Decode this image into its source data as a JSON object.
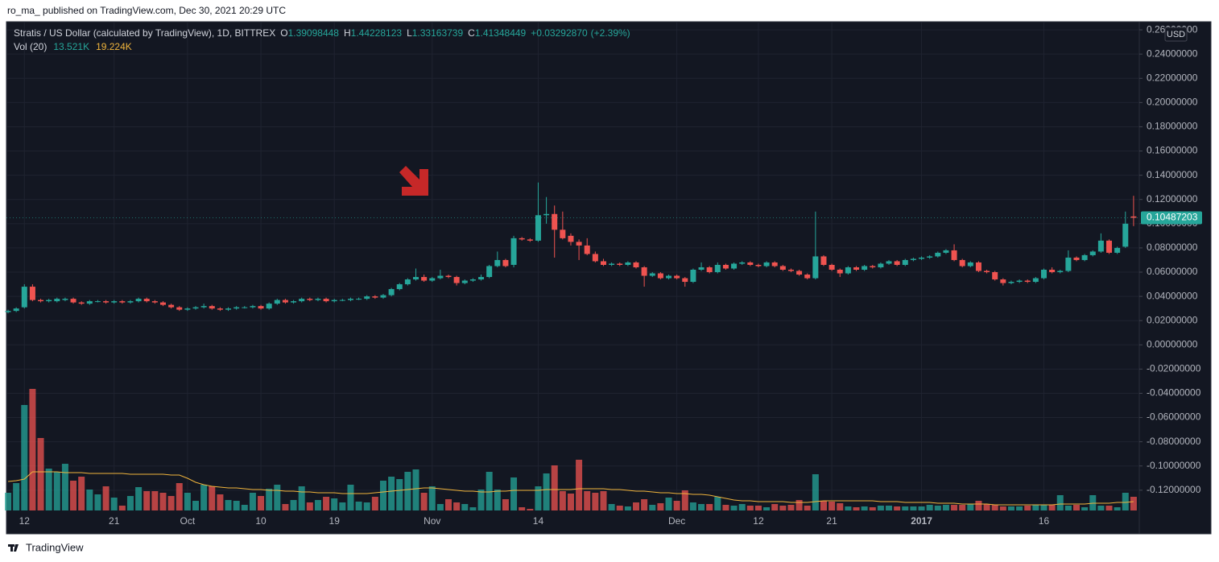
{
  "header": "ro_ma_ published on TradingView.com, Dec 30, 2021 20:29 UTC",
  "footer": "TradingView",
  "chart_data": {
    "type": "candlestick",
    "title": "Stratis / US Dollar (calculated by TradingView), 1D, BITTREX",
    "ohlc_legend": [
      {
        "key": "O",
        "value": 1.39098448
      },
      {
        "key": "H",
        "value": 1.44228123
      },
      {
        "key": "L",
        "value": 1.33163739
      },
      {
        "key": "C",
        "value": 1.41348449
      }
    ],
    "change": "+0.03292870",
    "change_pct": "(+2.39%)",
    "volume_legend": {
      "name": "Vol (20)",
      "value": "13.521K",
      "ma": "19.224K"
    },
    "currency": "USD",
    "up_color": "#26a69a",
    "down_color": "#ef5350",
    "ma_color": "#f0b43c",
    "xlim": [
      -0.2,
      138.7
    ],
    "ylim": [
      -0.156,
      0.2667
    ],
    "grid": true,
    "xticks": [
      {
        "value": 2,
        "label": "12"
      },
      {
        "value": 13,
        "label": "21"
      },
      {
        "value": 22,
        "label": "Oct"
      },
      {
        "value": 31,
        "label": "10"
      },
      {
        "value": 40,
        "label": "19"
      },
      {
        "value": 52,
        "label": "Nov"
      },
      {
        "value": 65,
        "label": "14"
      },
      {
        "value": 82,
        "label": "Dec"
      },
      {
        "value": 92,
        "label": "12"
      },
      {
        "value": 101,
        "label": "21"
      },
      {
        "value": 112,
        "label": "2017"
      },
      {
        "value": 127,
        "label": "16"
      }
    ],
    "yticks": [
      {
        "value": 0.26,
        "label": "0.26000000"
      },
      {
        "value": 0.24,
        "label": "0.24000000"
      },
      {
        "value": 0.22,
        "label": "0.22000000"
      },
      {
        "value": 0.2,
        "label": "0.20000000"
      },
      {
        "value": 0.18,
        "label": "0.18000000"
      },
      {
        "value": 0.16,
        "label": "0.16000000"
      },
      {
        "value": 0.14,
        "label": "0.14000000"
      },
      {
        "value": 0.12,
        "label": "0.12000000"
      },
      {
        "value": 0.1,
        "label": "0.10000000"
      },
      {
        "value": 0.08,
        "label": "0.08000000"
      },
      {
        "value": 0.06,
        "label": "0.06000000"
      },
      {
        "value": 0.04,
        "label": "0.04000000"
      },
      {
        "value": 0.02,
        "label": "0.02000000"
      },
      {
        "value": 0,
        "label": "0.00000000"
      },
      {
        "value": -0.02,
        "label": "-0.02000000"
      },
      {
        "value": -0.04,
        "label": "-0.04000000"
      },
      {
        "value": -0.06,
        "label": "-0.06000000"
      },
      {
        "value": -0.08,
        "label": "-0.08000000"
      },
      {
        "value": -0.1,
        "label": "-0.10000000"
      },
      {
        "value": -0.12,
        "label": "-0.12000000"
      }
    ],
    "ohlc": [
      [
        0.027,
        0.029,
        0.026,
        0.028
      ],
      [
        0.028,
        0.031,
        0.027,
        0.03
      ],
      [
        0.031,
        0.05,
        0.03,
        0.048
      ],
      [
        0.048,
        0.05,
        0.036,
        0.037
      ],
      [
        0.037,
        0.038,
        0.035,
        0.036
      ],
      [
        0.036,
        0.038,
        0.035,
        0.037
      ],
      [
        0.036,
        0.039,
        0.035,
        0.038
      ],
      [
        0.037,
        0.039,
        0.036,
        0.038
      ],
      [
        0.038,
        0.039,
        0.034,
        0.035
      ],
      [
        0.035,
        0.036,
        0.033,
        0.034
      ],
      [
        0.034,
        0.037,
        0.033,
        0.036
      ],
      [
        0.036,
        0.037,
        0.035,
        0.036
      ],
      [
        0.036,
        0.037,
        0.034,
        0.035
      ],
      [
        0.035,
        0.037,
        0.034,
        0.036
      ],
      [
        0.036,
        0.037,
        0.034,
        0.035
      ],
      [
        0.035,
        0.037,
        0.034,
        0.036
      ],
      [
        0.036,
        0.039,
        0.035,
        0.038
      ],
      [
        0.038,
        0.039,
        0.035,
        0.036
      ],
      [
        0.036,
        0.037,
        0.034,
        0.035
      ],
      [
        0.035,
        0.036,
        0.032,
        0.033
      ],
      [
        0.033,
        0.034,
        0.03,
        0.031
      ],
      [
        0.031,
        0.032,
        0.028,
        0.029
      ],
      [
        0.029,
        0.031,
        0.028,
        0.03
      ],
      [
        0.03,
        0.032,
        0.029,
        0.031
      ],
      [
        0.031,
        0.034,
        0.03,
        0.032
      ],
      [
        0.032,
        0.033,
        0.029,
        0.03
      ],
      [
        0.03,
        0.031,
        0.028,
        0.029
      ],
      [
        0.029,
        0.031,
        0.028,
        0.03
      ],
      [
        0.03,
        0.032,
        0.029,
        0.031
      ],
      [
        0.031,
        0.032,
        0.03,
        0.031
      ],
      [
        0.031,
        0.033,
        0.03,
        0.032
      ],
      [
        0.032,
        0.033,
        0.029,
        0.03
      ],
      [
        0.03,
        0.035,
        0.029,
        0.034
      ],
      [
        0.034,
        0.038,
        0.033,
        0.037
      ],
      [
        0.037,
        0.038,
        0.034,
        0.035
      ],
      [
        0.035,
        0.037,
        0.034,
        0.036
      ],
      [
        0.036,
        0.039,
        0.035,
        0.038
      ],
      [
        0.038,
        0.039,
        0.036,
        0.037
      ],
      [
        0.037,
        0.039,
        0.036,
        0.038
      ],
      [
        0.038,
        0.039,
        0.035,
        0.036
      ],
      [
        0.036,
        0.038,
        0.035,
        0.037
      ],
      [
        0.037,
        0.038,
        0.036,
        0.037
      ],
      [
        0.037,
        0.039,
        0.036,
        0.038
      ],
      [
        0.038,
        0.039,
        0.037,
        0.038
      ],
      [
        0.038,
        0.041,
        0.037,
        0.04
      ],
      [
        0.04,
        0.041,
        0.038,
        0.039
      ],
      [
        0.039,
        0.042,
        0.038,
        0.041
      ],
      [
        0.041,
        0.047,
        0.04,
        0.046
      ],
      [
        0.046,
        0.051,
        0.045,
        0.05
      ],
      [
        0.05,
        0.055,
        0.049,
        0.054
      ],
      [
        0.054,
        0.063,
        0.053,
        0.056
      ],
      [
        0.056,
        0.058,
        0.052,
        0.053
      ],
      [
        0.053,
        0.056,
        0.052,
        0.055
      ],
      [
        0.055,
        0.062,
        0.054,
        0.057
      ],
      [
        0.057,
        0.058,
        0.055,
        0.056
      ],
      [
        0.056,
        0.057,
        0.049,
        0.051
      ],
      [
        0.051,
        0.054,
        0.05,
        0.053
      ],
      [
        0.053,
        0.055,
        0.052,
        0.054
      ],
      [
        0.054,
        0.058,
        0.053,
        0.056
      ],
      [
        0.056,
        0.066,
        0.055,
        0.065
      ],
      [
        0.065,
        0.077,
        0.064,
        0.07
      ],
      [
        0.07,
        0.071,
        0.064,
        0.065
      ],
      [
        0.066,
        0.09,
        0.064,
        0.088
      ],
      [
        0.088,
        0.089,
        0.086,
        0.087
      ],
      [
        0.087,
        0.088,
        0.085,
        0.086
      ],
      [
        0.086,
        0.134,
        0.085,
        0.107
      ],
      [
        0.107,
        0.122,
        0.1,
        0.108
      ],
      [
        0.108,
        0.115,
        0.072,
        0.095
      ],
      [
        0.095,
        0.11,
        0.087,
        0.088
      ],
      [
        0.09,
        0.092,
        0.082,
        0.085
      ],
      [
        0.085,
        0.087,
        0.07,
        0.082
      ],
      [
        0.082,
        0.088,
        0.074,
        0.075
      ],
      [
        0.075,
        0.077,
        0.068,
        0.069
      ],
      [
        0.069,
        0.071,
        0.065,
        0.066
      ],
      [
        0.066,
        0.068,
        0.065,
        0.067
      ],
      [
        0.067,
        0.068,
        0.065,
        0.066
      ],
      [
        0.066,
        0.069,
        0.065,
        0.068
      ],
      [
        0.068,
        0.069,
        0.063,
        0.064
      ],
      [
        0.064,
        0.065,
        0.048,
        0.057
      ],
      [
        0.057,
        0.06,
        0.056,
        0.059
      ],
      [
        0.059,
        0.06,
        0.054,
        0.055
      ],
      [
        0.055,
        0.058,
        0.054,
        0.057
      ],
      [
        0.057,
        0.058,
        0.054,
        0.055
      ],
      [
        0.055,
        0.056,
        0.048,
        0.052
      ],
      [
        0.052,
        0.063,
        0.051,
        0.062
      ],
      [
        0.062,
        0.068,
        0.061,
        0.064
      ],
      [
        0.064,
        0.065,
        0.059,
        0.06
      ],
      [
        0.06,
        0.068,
        0.059,
        0.066
      ],
      [
        0.066,
        0.067,
        0.062,
        0.063
      ],
      [
        0.063,
        0.068,
        0.062,
        0.067
      ],
      [
        0.067,
        0.069,
        0.066,
        0.068
      ],
      [
        0.068,
        0.069,
        0.065,
        0.066
      ],
      [
        0.066,
        0.067,
        0.064,
        0.065
      ],
      [
        0.065,
        0.069,
        0.064,
        0.068
      ],
      [
        0.068,
        0.069,
        0.064,
        0.065
      ],
      [
        0.065,
        0.066,
        0.061,
        0.062
      ],
      [
        0.062,
        0.063,
        0.06,
        0.061
      ],
      [
        0.061,
        0.062,
        0.057,
        0.058
      ],
      [
        0.058,
        0.059,
        0.054,
        0.055
      ],
      [
        0.055,
        0.11,
        0.054,
        0.073
      ],
      [
        0.073,
        0.074,
        0.065,
        0.066
      ],
      [
        0.066,
        0.067,
        0.061,
        0.062
      ],
      [
        0.062,
        0.063,
        0.056,
        0.059
      ],
      [
        0.059,
        0.065,
        0.058,
        0.064
      ],
      [
        0.064,
        0.065,
        0.061,
        0.062
      ],
      [
        0.062,
        0.066,
        0.061,
        0.065
      ],
      [
        0.065,
        0.066,
        0.063,
        0.064
      ],
      [
        0.064,
        0.068,
        0.063,
        0.067
      ],
      [
        0.067,
        0.07,
        0.066,
        0.069
      ],
      [
        0.069,
        0.07,
        0.065,
        0.066
      ],
      [
        0.066,
        0.071,
        0.065,
        0.07
      ],
      [
        0.07,
        0.072,
        0.069,
        0.071
      ],
      [
        0.071,
        0.073,
        0.07,
        0.072
      ],
      [
        0.072,
        0.074,
        0.071,
        0.073
      ],
      [
        0.073,
        0.077,
        0.072,
        0.076
      ],
      [
        0.076,
        0.079,
        0.075,
        0.078
      ],
      [
        0.078,
        0.083,
        0.069,
        0.07
      ],
      [
        0.07,
        0.071,
        0.064,
        0.065
      ],
      [
        0.065,
        0.069,
        0.064,
        0.068
      ],
      [
        0.068,
        0.069,
        0.06,
        0.061
      ],
      [
        0.061,
        0.062,
        0.059,
        0.06
      ],
      [
        0.06,
        0.061,
        0.053,
        0.054
      ],
      [
        0.054,
        0.055,
        0.049,
        0.051
      ],
      [
        0.051,
        0.053,
        0.05,
        0.052
      ],
      [
        0.052,
        0.054,
        0.051,
        0.053
      ],
      [
        0.053,
        0.054,
        0.051,
        0.052
      ],
      [
        0.052,
        0.056,
        0.051,
        0.055
      ],
      [
        0.055,
        0.063,
        0.054,
        0.062
      ],
      [
        0.062,
        0.064,
        0.059,
        0.06
      ],
      [
        0.06,
        0.062,
        0.059,
        0.061
      ],
      [
        0.061,
        0.078,
        0.06,
        0.072
      ],
      [
        0.072,
        0.073,
        0.069,
        0.07
      ],
      [
        0.07,
        0.075,
        0.069,
        0.074
      ],
      [
        0.074,
        0.078,
        0.073,
        0.077
      ],
      [
        0.077,
        0.092,
        0.076,
        0.086
      ],
      [
        0.086,
        0.087,
        0.075,
        0.076
      ],
      [
        0.076,
        0.081,
        0.075,
        0.08
      ],
      [
        0.081,
        0.11,
        0.08,
        0.1
      ],
      [
        0.106,
        0.123,
        0.098,
        0.10487203
      ]
    ],
    "volume": [
      17.6,
      27.2,
      104.8,
      120.8,
      72,
      41.6,
      38.4,
      46.4,
      29.6,
      33.6,
      20.8,
      16,
      24,
      12.8,
      4.8,
      14.4,
      23.2,
      19.2,
      19.2,
      17.6,
      14.4,
      27.2,
      17.6,
      9.6,
      25.6,
      24,
      16,
      10.4,
      9.6,
      5.6,
      17.6,
      14.4,
      21.6,
      25.6,
      6.4,
      10.4,
      24,
      8,
      10.4,
      13.6,
      12,
      8,
      25.6,
      8.8,
      8,
      13.6,
      29.6,
      33.6,
      31.2,
      38.4,
      40.8,
      17.6,
      24,
      6.4,
      11.2,
      8,
      6.4,
      3.2,
      20.8,
      38.4,
      20.8,
      11.2,
      32.8,
      3.2,
      1.6,
      24,
      36.8,
      44.8,
      19.2,
      16.8,
      50.4,
      19.2,
      17.6,
      19.2,
      6.4,
      4.8,
      4,
      8,
      11.2,
      5.6,
      7.2,
      12.8,
      9.6,
      20,
      8,
      6.4,
      6.4,
      13.6,
      5.6,
      4.8,
      6.4,
      4.8,
      4.8,
      3.2,
      6.4,
      4.8,
      5.6,
      10.4,
      4.8,
      36,
      9.6,
      8.8,
      7.2,
      4,
      3.2,
      4,
      3.2,
      4.8,
      4.8,
      4,
      4,
      4,
      4,
      5.6,
      4.8,
      5.6,
      5.6,
      5.6,
      6.4,
      9.6,
      6.4,
      5.6,
      4,
      4,
      4,
      4.8,
      5.6,
      5.6,
      5.6,
      15.2,
      4.8,
      5.6,
      3.2,
      15.2,
      4.8,
      4.8,
      3.2,
      17.6,
      13.6
    ],
    "volume_ma": [
      28.8,
      29.6,
      31.2,
      38.4,
      38.4,
      38.4,
      38.4,
      37.6,
      37.6,
      37.6,
      36.8,
      36.8,
      36.8,
      36.8,
      36.8,
      36,
      36,
      36,
      36,
      36,
      35.2,
      35.2,
      32,
      28,
      25.6,
      24,
      23.2,
      22.4,
      22.4,
      21.6,
      20.8,
      20.8,
      20,
      20,
      19.2,
      19.2,
      18.4,
      18.4,
      17.6,
      17.6,
      17.6,
      16.8,
      16.8,
      16.8,
      16.8,
      17.6,
      18.4,
      19.2,
      20,
      20.8,
      21.6,
      22.4,
      22.4,
      21.6,
      20.8,
      20,
      19.2,
      19.2,
      18.4,
      18.4,
      19.2,
      19.2,
      20,
      20,
      20,
      20,
      20.8,
      20.8,
      20.8,
      20.8,
      21.6,
      21.6,
      21.6,
      21.6,
      20.8,
      20.8,
      20,
      19.2,
      19.2,
      18.4,
      17.6,
      17.6,
      16.8,
      16.8,
      16,
      16,
      15.2,
      13.6,
      12,
      10.4,
      9.6,
      9.6,
      8.8,
      8.8,
      8.8,
      8.8,
      8,
      8,
      8,
      8.8,
      9.6,
      9.6,
      9.6,
      9.6,
      9.6,
      9.6,
      9.6,
      8.8,
      8.8,
      8.8,
      8,
      8,
      8,
      8,
      7.2,
      7.2,
      7.2,
      6.4,
      6.4,
      6.4,
      6.4,
      5.6,
      5.6,
      5.6,
      5.6,
      5.6,
      5.6,
      5.6,
      5.6,
      6.4,
      6.4,
      6.4,
      6.4,
      7.2,
      7.2,
      7.2,
      8,
      8,
      8.8
    ]
  }
}
